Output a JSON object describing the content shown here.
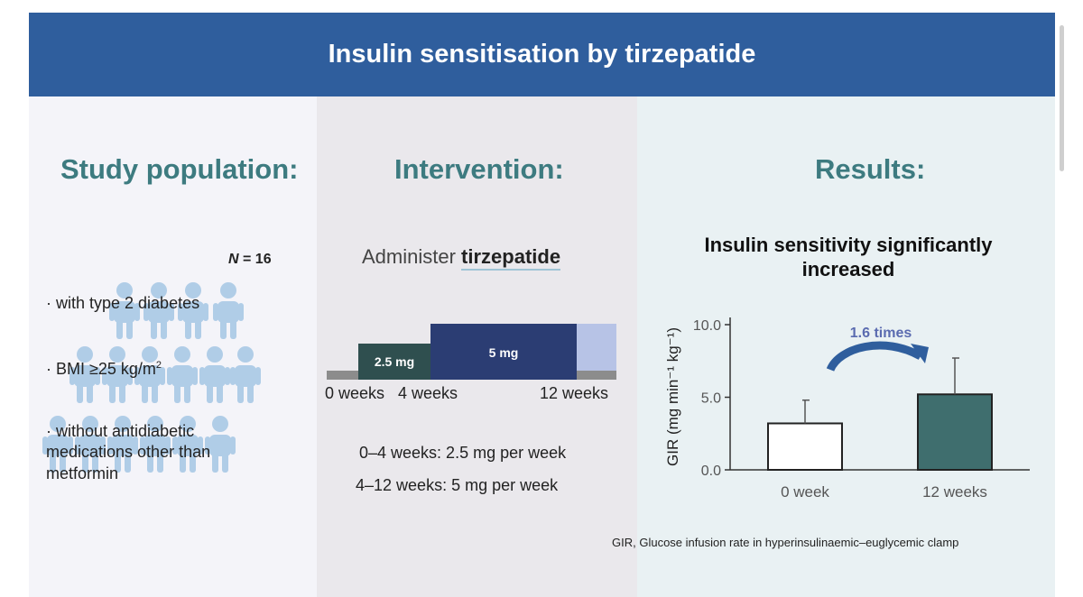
{
  "header": {
    "title": "Insulin sensitisation by tirzepatide"
  },
  "study": {
    "heading": "Study population:",
    "n_label": "N",
    "n_value": " = 16",
    "criteria": [
      "· with type 2 diabetes",
      "· BMI ≥25 kg/m",
      "2",
      "· without antidiabetic",
      "medications other than",
      "metformin"
    ]
  },
  "intervention": {
    "heading": "Intervention:",
    "administer_prefix": "Administer ",
    "drug": "tirzepatide",
    "doses": [
      "2.5 mg",
      "5 mg"
    ],
    "week_labels": [
      "0 weeks",
      "4 weeks",
      "12 weeks"
    ],
    "schedule": [
      "0–4 weeks: 2.5 mg per week",
      "4–12 weeks: 5 mg per week"
    ]
  },
  "results": {
    "heading": "Results:",
    "title": "Insulin sensitivity significantly increased",
    "annotation": "1.6 times",
    "footnote": "GIR, Glucose infusion rate in hyperinsulinaemic–euglycemic clamp"
  },
  "chart_data": {
    "type": "bar",
    "categories": [
      "0 week",
      "12 weeks"
    ],
    "values": [
      3.2,
      5.2
    ],
    "errors": [
      1.6,
      2.5
    ],
    "ylabel": "GIR (mg min⁻¹ kg⁻¹)",
    "ylim": [
      0,
      10
    ],
    "yticks": [
      "0.0",
      "5.0",
      "10.0"
    ],
    "bar_colors": [
      "#ffffff",
      "#3f6e6e"
    ]
  }
}
